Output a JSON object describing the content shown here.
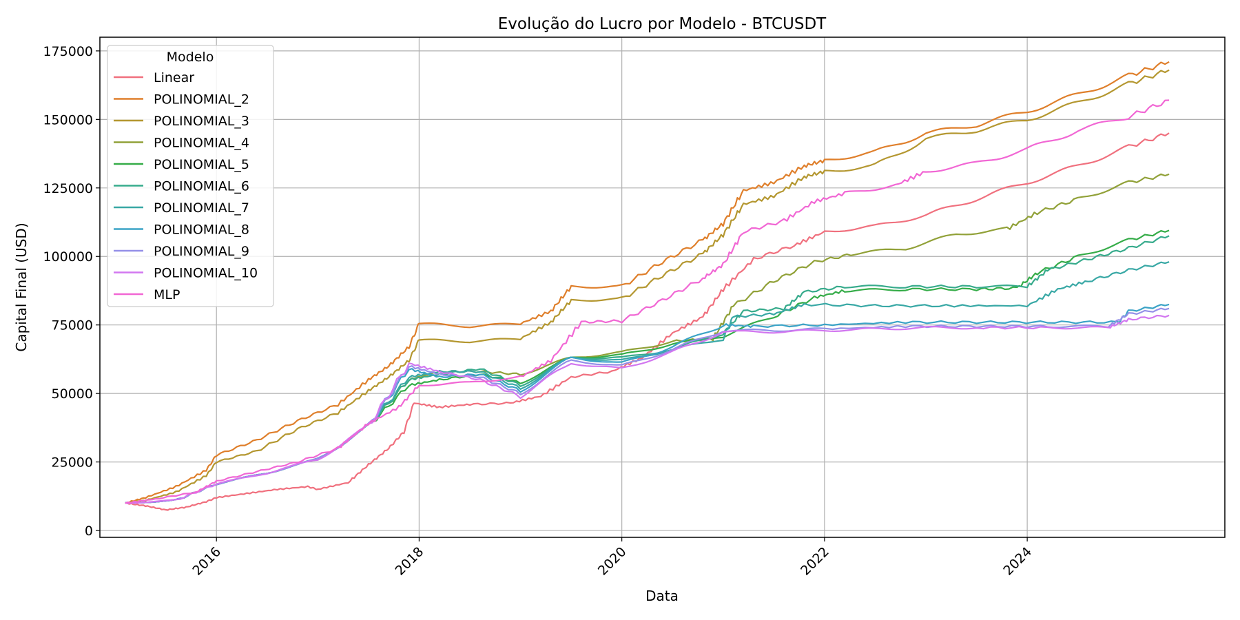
{
  "chart_data": {
    "type": "line",
    "title": "Evolução do Lucro por Modelo - BTCUSDT",
    "xlabel": "Data",
    "ylabel": "Capital Final (USD)",
    "xlim": [
      2014.85,
      2025.95
    ],
    "ylim": [
      -2500,
      180000
    ],
    "x_ticks": [
      2016,
      2018,
      2020,
      2022,
      2024
    ],
    "y_ticks": [
      0,
      25000,
      50000,
      75000,
      100000,
      125000,
      150000,
      175000
    ],
    "grid": true,
    "legend": {
      "title": "Modelo",
      "placement": "top-left"
    },
    "series": [
      {
        "name": "Linear",
        "color": "#f0707e",
        "x": [
          2015.1,
          2015.3,
          2015.5,
          2015.7,
          2015.9,
          2016.0,
          2016.3,
          2016.6,
          2016.9,
          2017.0,
          2017.3,
          2017.5,
          2017.7,
          2017.85,
          2017.95,
          2018.2,
          2018.5,
          2018.9,
          2019.2,
          2019.5,
          2019.9,
          2020.2,
          2020.5,
          2020.8,
          2021.0,
          2021.3,
          2021.7,
          2022.0,
          2022.5,
          2023.0,
          2023.5,
          2024.0,
          2024.5,
          2025.0,
          2025.4
        ],
        "y": [
          10000,
          9000,
          7500,
          8500,
          10500,
          12000,
          13500,
          15000,
          16000,
          15000,
          17500,
          24000,
          30000,
          36000,
          46500,
          45000,
          46000,
          46500,
          49000,
          56000,
          58000,
          63000,
          72000,
          78000,
          88000,
          99000,
          104000,
          109000,
          111000,
          115000,
          121000,
          127000,
          133000,
          140000,
          145000
        ]
      },
      {
        "name": "POLINOMIAL_2",
        "color": "#df7f2b",
        "x": [
          2015.1,
          2015.3,
          2015.6,
          2015.9,
          2016.0,
          2016.4,
          2016.8,
          2017.2,
          2017.5,
          2017.7,
          2017.9,
          2018.0,
          2018.5,
          2019.0,
          2019.3,
          2019.5,
          2020.0,
          2020.4,
          2020.8,
          2021.0,
          2021.2,
          2021.5,
          2021.8,
          2022.0,
          2022.5,
          2023.0,
          2023.5,
          2024.0,
          2024.5,
          2025.0,
          2025.4
        ],
        "y": [
          10000,
          12000,
          16000,
          22000,
          27500,
          33000,
          40000,
          46000,
          55000,
          60000,
          67000,
          75500,
          74500,
          75500,
          80000,
          89000,
          89000,
          98000,
          106000,
          112000,
          124000,
          127000,
          133000,
          135000,
          138000,
          145000,
          148000,
          153000,
          159000,
          166000,
          171000
        ]
      },
      {
        "name": "POLINOMIAL_3",
        "color": "#b49730",
        "x": [
          2015.1,
          2015.3,
          2015.6,
          2015.9,
          2016.0,
          2016.4,
          2016.8,
          2017.2,
          2017.5,
          2017.7,
          2017.9,
          2018.0,
          2018.5,
          2019.0,
          2019.3,
          2019.5,
          2020.0,
          2020.4,
          2020.8,
          2021.0,
          2021.2,
          2021.5,
          2021.8,
          2022.0,
          2022.5,
          2023.0,
          2023.5,
          2024.0,
          2024.5,
          2025.0,
          2025.4
        ],
        "y": [
          10000,
          11000,
          14000,
          20000,
          25000,
          29000,
          37000,
          43000,
          51000,
          56000,
          62000,
          69500,
          69000,
          70000,
          76000,
          84000,
          84500,
          93000,
          101000,
          108000,
          119000,
          122000,
          129000,
          131000,
          133000,
          143000,
          146000,
          150000,
          156000,
          163000,
          168000
        ]
      },
      {
        "name": "POLINOMIAL_4",
        "color": "#91a138",
        "x": [
          2015.1,
          2015.6,
          2016.0,
          2016.5,
          2017.0,
          2017.5,
          2017.9,
          2018.2,
          2018.6,
          2019.0,
          2019.5,
          2020.0,
          2020.5,
          2020.9,
          2021.1,
          2021.5,
          2021.9,
          2022.3,
          2022.8,
          2023.3,
          2023.8,
          2024.1,
          2024.5,
          2025.0,
          2025.4
        ],
        "y": [
          10000,
          11000,
          17000,
          21000,
          26000,
          38000,
          55000,
          58000,
          58000,
          57000,
          63000,
          65000,
          69000,
          70000,
          82000,
          91000,
          98000,
          101000,
          103000,
          108000,
          110000,
          116000,
          121000,
          127000,
          130000
        ]
      },
      {
        "name": "POLINOMIAL_5",
        "color": "#35ac48",
        "x": [
          2015.1,
          2015.6,
          2016.0,
          2016.5,
          2017.0,
          2017.5,
          2017.9,
          2018.2,
          2018.6,
          2019.0,
          2019.5,
          2020.0,
          2020.5,
          2021.0,
          2021.5,
          2021.9,
          2022.2,
          2022.8,
          2023.5,
          2023.9,
          2024.1,
          2024.5,
          2025.0,
          2025.4
        ],
        "y": [
          10000,
          11000,
          17000,
          21000,
          26000,
          38000,
          53000,
          55000,
          57000,
          54000,
          63000,
          64000,
          68000,
          71000,
          78000,
          85000,
          87500,
          88000,
          88000,
          88500,
          94000,
          100000,
          106000,
          109500
        ]
      },
      {
        "name": "POLINOMIAL_6",
        "color": "#37ab8c",
        "x": [
          2015.1,
          2015.6,
          2016.0,
          2016.5,
          2017.0,
          2017.5,
          2017.9,
          2018.2,
          2018.6,
          2019.0,
          2019.5,
          2020.0,
          2020.5,
          2021.0,
          2021.2,
          2021.6,
          2021.8,
          2022.2,
          2022.8,
          2023.5,
          2024.0,
          2024.2,
          2024.6,
          2025.0,
          2025.4
        ],
        "y": [
          10000,
          11000,
          17000,
          21000,
          26000,
          38000,
          55000,
          57000,
          59000,
          53000,
          63000,
          63000,
          66000,
          72000,
          80000,
          81000,
          87000,
          89000,
          89000,
          89000,
          89000,
          95000,
          99000,
          103000,
          107500
        ]
      },
      {
        "name": "POLINOMIAL_7",
        "color": "#38a8a5",
        "x": [
          2015.1,
          2015.6,
          2016.0,
          2016.5,
          2017.0,
          2017.5,
          2017.9,
          2018.2,
          2018.6,
          2019.0,
          2019.5,
          2020.0,
          2020.5,
          2021.0,
          2021.1,
          2021.5,
          2021.8,
          2022.5,
          2023.2,
          2024.0,
          2024.3,
          2024.6,
          2025.0,
          2025.4
        ],
        "y": [
          10000,
          11000,
          17000,
          21000,
          26000,
          38000,
          56000,
          58000,
          58000,
          52000,
          63000,
          62000,
          66000,
          70000,
          78000,
          79000,
          82500,
          82000,
          82000,
          82000,
          88000,
          91000,
          95000,
          98000
        ]
      },
      {
        "name": "POLINOMIAL_8",
        "color": "#3ba3c6",
        "x": [
          2015.1,
          2015.6,
          2016.0,
          2016.5,
          2017.0,
          2017.5,
          2017.9,
          2018.2,
          2018.6,
          2019.0,
          2019.5,
          2020.0,
          2020.5,
          2021.0,
          2021.3,
          2022.0,
          2022.8,
          2023.5,
          2024.2,
          2024.9,
          2025.0,
          2025.4
        ],
        "y": [
          10000,
          11000,
          17000,
          21000,
          26000,
          38000,
          59000,
          56000,
          57000,
          51000,
          63000,
          61000,
          67000,
          75000,
          74500,
          75000,
          76000,
          76000,
          76000,
          76000,
          80000,
          82500
        ]
      },
      {
        "name": "POLINOMIAL_9",
        "color": "#9490e8",
        "x": [
          2015.1,
          2015.6,
          2016.0,
          2016.5,
          2017.0,
          2017.5,
          2017.9,
          2018.2,
          2018.6,
          2019.0,
          2019.5,
          2020.0,
          2020.5,
          2021.0,
          2021.5,
          2022.0,
          2022.8,
          2023.5,
          2024.2,
          2024.8,
          2025.0,
          2025.4
        ],
        "y": [
          10000,
          11000,
          17000,
          21000,
          26000,
          38000,
          60000,
          57000,
          56000,
          50000,
          62000,
          60000,
          66000,
          73000,
          73000,
          73500,
          74500,
          74500,
          74500,
          74500,
          79000,
          81000
        ]
      },
      {
        "name": "POLINOMIAL_10",
        "color": "#d277f0",
        "x": [
          2015.1,
          2015.6,
          2016.0,
          2016.5,
          2017.0,
          2017.5,
          2017.9,
          2018.2,
          2018.6,
          2019.0,
          2019.5,
          2020.0,
          2020.5,
          2021.0,
          2021.5,
          2022.0,
          2022.5,
          2023.0,
          2023.5,
          2024.2,
          2024.8,
          2025.0,
          2025.4
        ],
        "y": [
          10000,
          11000,
          17000,
          21000,
          26000,
          38000,
          61000,
          58000,
          55000,
          49000,
          61000,
          59000,
          65000,
          72500,
          72500,
          73000,
          73500,
          74000,
          74000,
          74000,
          74000,
          77000,
          78500
        ]
      },
      {
        "name": "MLP",
        "color": "#f167d4",
        "x": [
          2015.1,
          2015.4,
          2015.8,
          2016.0,
          2016.4,
          2016.8,
          2017.2,
          2017.5,
          2017.8,
          2018.0,
          2018.5,
          2019.0,
          2019.3,
          2019.6,
          2020.0,
          2020.4,
          2020.8,
          2021.0,
          2021.2,
          2021.6,
          2021.9,
          2022.2,
          2022.7,
          2023.0,
          2023.5,
          2024.0,
          2024.5,
          2025.0,
          2025.4
        ],
        "y": [
          10000,
          11500,
          14000,
          18000,
          21500,
          25000,
          30000,
          39000,
          45000,
          53000,
          54000,
          56000,
          62000,
          76000,
          76500,
          84000,
          92000,
          97000,
          109000,
          113000,
          120000,
          123000,
          126000,
          131000,
          134000,
          139000,
          146000,
          151000,
          157000
        ]
      }
    ]
  }
}
